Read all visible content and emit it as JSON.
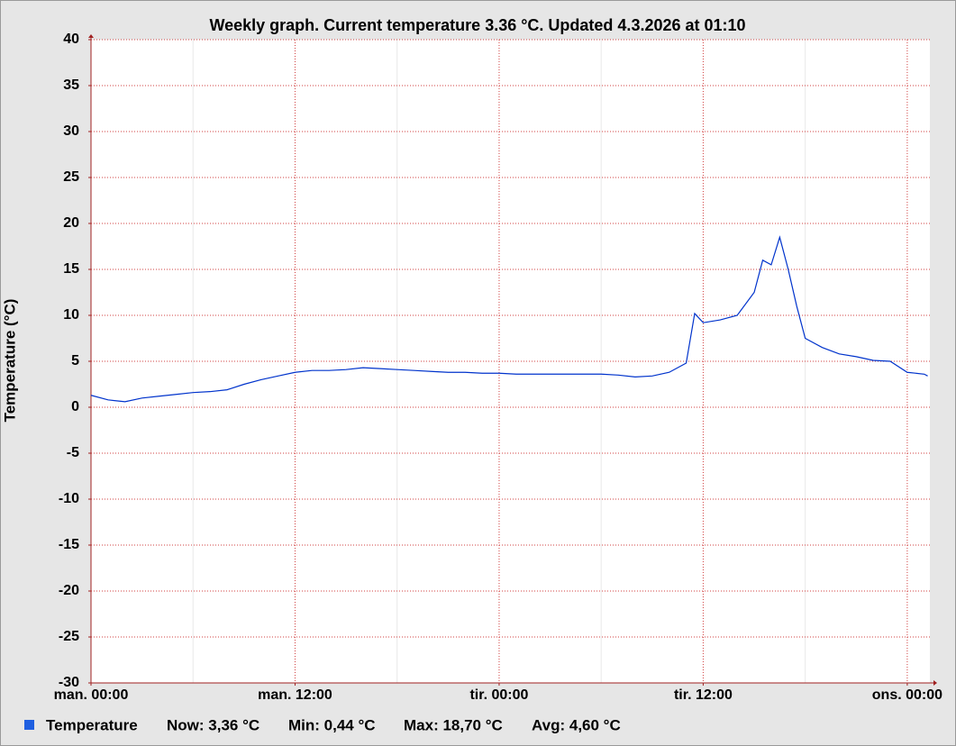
{
  "chart_data": {
    "type": "line",
    "title": "Weekly graph. Current temperature 3.36 °C. Updated 4.3.2026 at 01:10",
    "ylabel": "Temperature (°C)",
    "x": [
      0,
      1,
      2,
      3,
      4,
      5,
      6,
      7,
      8,
      9,
      10,
      11,
      12,
      13,
      14,
      15,
      16,
      17,
      18,
      19,
      20,
      21,
      22,
      23,
      24,
      25,
      26,
      27,
      28,
      29,
      30,
      31,
      32,
      33,
      34,
      35,
      35.5,
      36,
      37,
      38,
      39,
      39.5,
      40,
      40.5,
      41,
      41.5,
      42,
      43,
      44,
      45,
      46,
      47,
      48,
      49,
      49.2
    ],
    "series": [
      {
        "name": "Temperature",
        "color": "#0033cc",
        "values": [
          1.3,
          0.8,
          0.6,
          1.0,
          1.2,
          1.4,
          1.6,
          1.7,
          1.9,
          2.5,
          3.0,
          3.4,
          3.8,
          4.0,
          4.0,
          4.1,
          4.3,
          4.2,
          4.1,
          4.0,
          3.9,
          3.8,
          3.8,
          3.7,
          3.7,
          3.6,
          3.6,
          3.6,
          3.6,
          3.6,
          3.6,
          3.5,
          3.3,
          3.4,
          3.8,
          4.8,
          10.2,
          9.2,
          9.5,
          10.0,
          12.5,
          16.0,
          15.5,
          18.5,
          15.0,
          11.0,
          7.5,
          6.5,
          5.8,
          5.5,
          5.1,
          5.0,
          3.8,
          3.6,
          3.4
        ]
      }
    ],
    "xlim": [
      0,
      49.33
    ],
    "xticks": [
      {
        "value": 0,
        "label": "man. 00:00"
      },
      {
        "value": 12,
        "label": "man. 12:00"
      },
      {
        "value": 24,
        "label": "tir. 00:00"
      },
      {
        "value": 36,
        "label": "tir. 12:00"
      },
      {
        "value": 48,
        "label": "ons. 00:00"
      }
    ],
    "xminorticks": [
      6,
      18,
      30,
      42
    ],
    "ylim": [
      -30,
      40
    ],
    "yticks": [
      -30,
      -25,
      -20,
      -15,
      -10,
      -5,
      0,
      5,
      10,
      15,
      20,
      25,
      30,
      35,
      40
    ],
    "grid": true,
    "legend_stats": [
      "Now: 3,36 °C",
      "Min: 0,44 °C",
      "Max: 18,70 °C",
      "Avg: 4,60 °C"
    ]
  }
}
